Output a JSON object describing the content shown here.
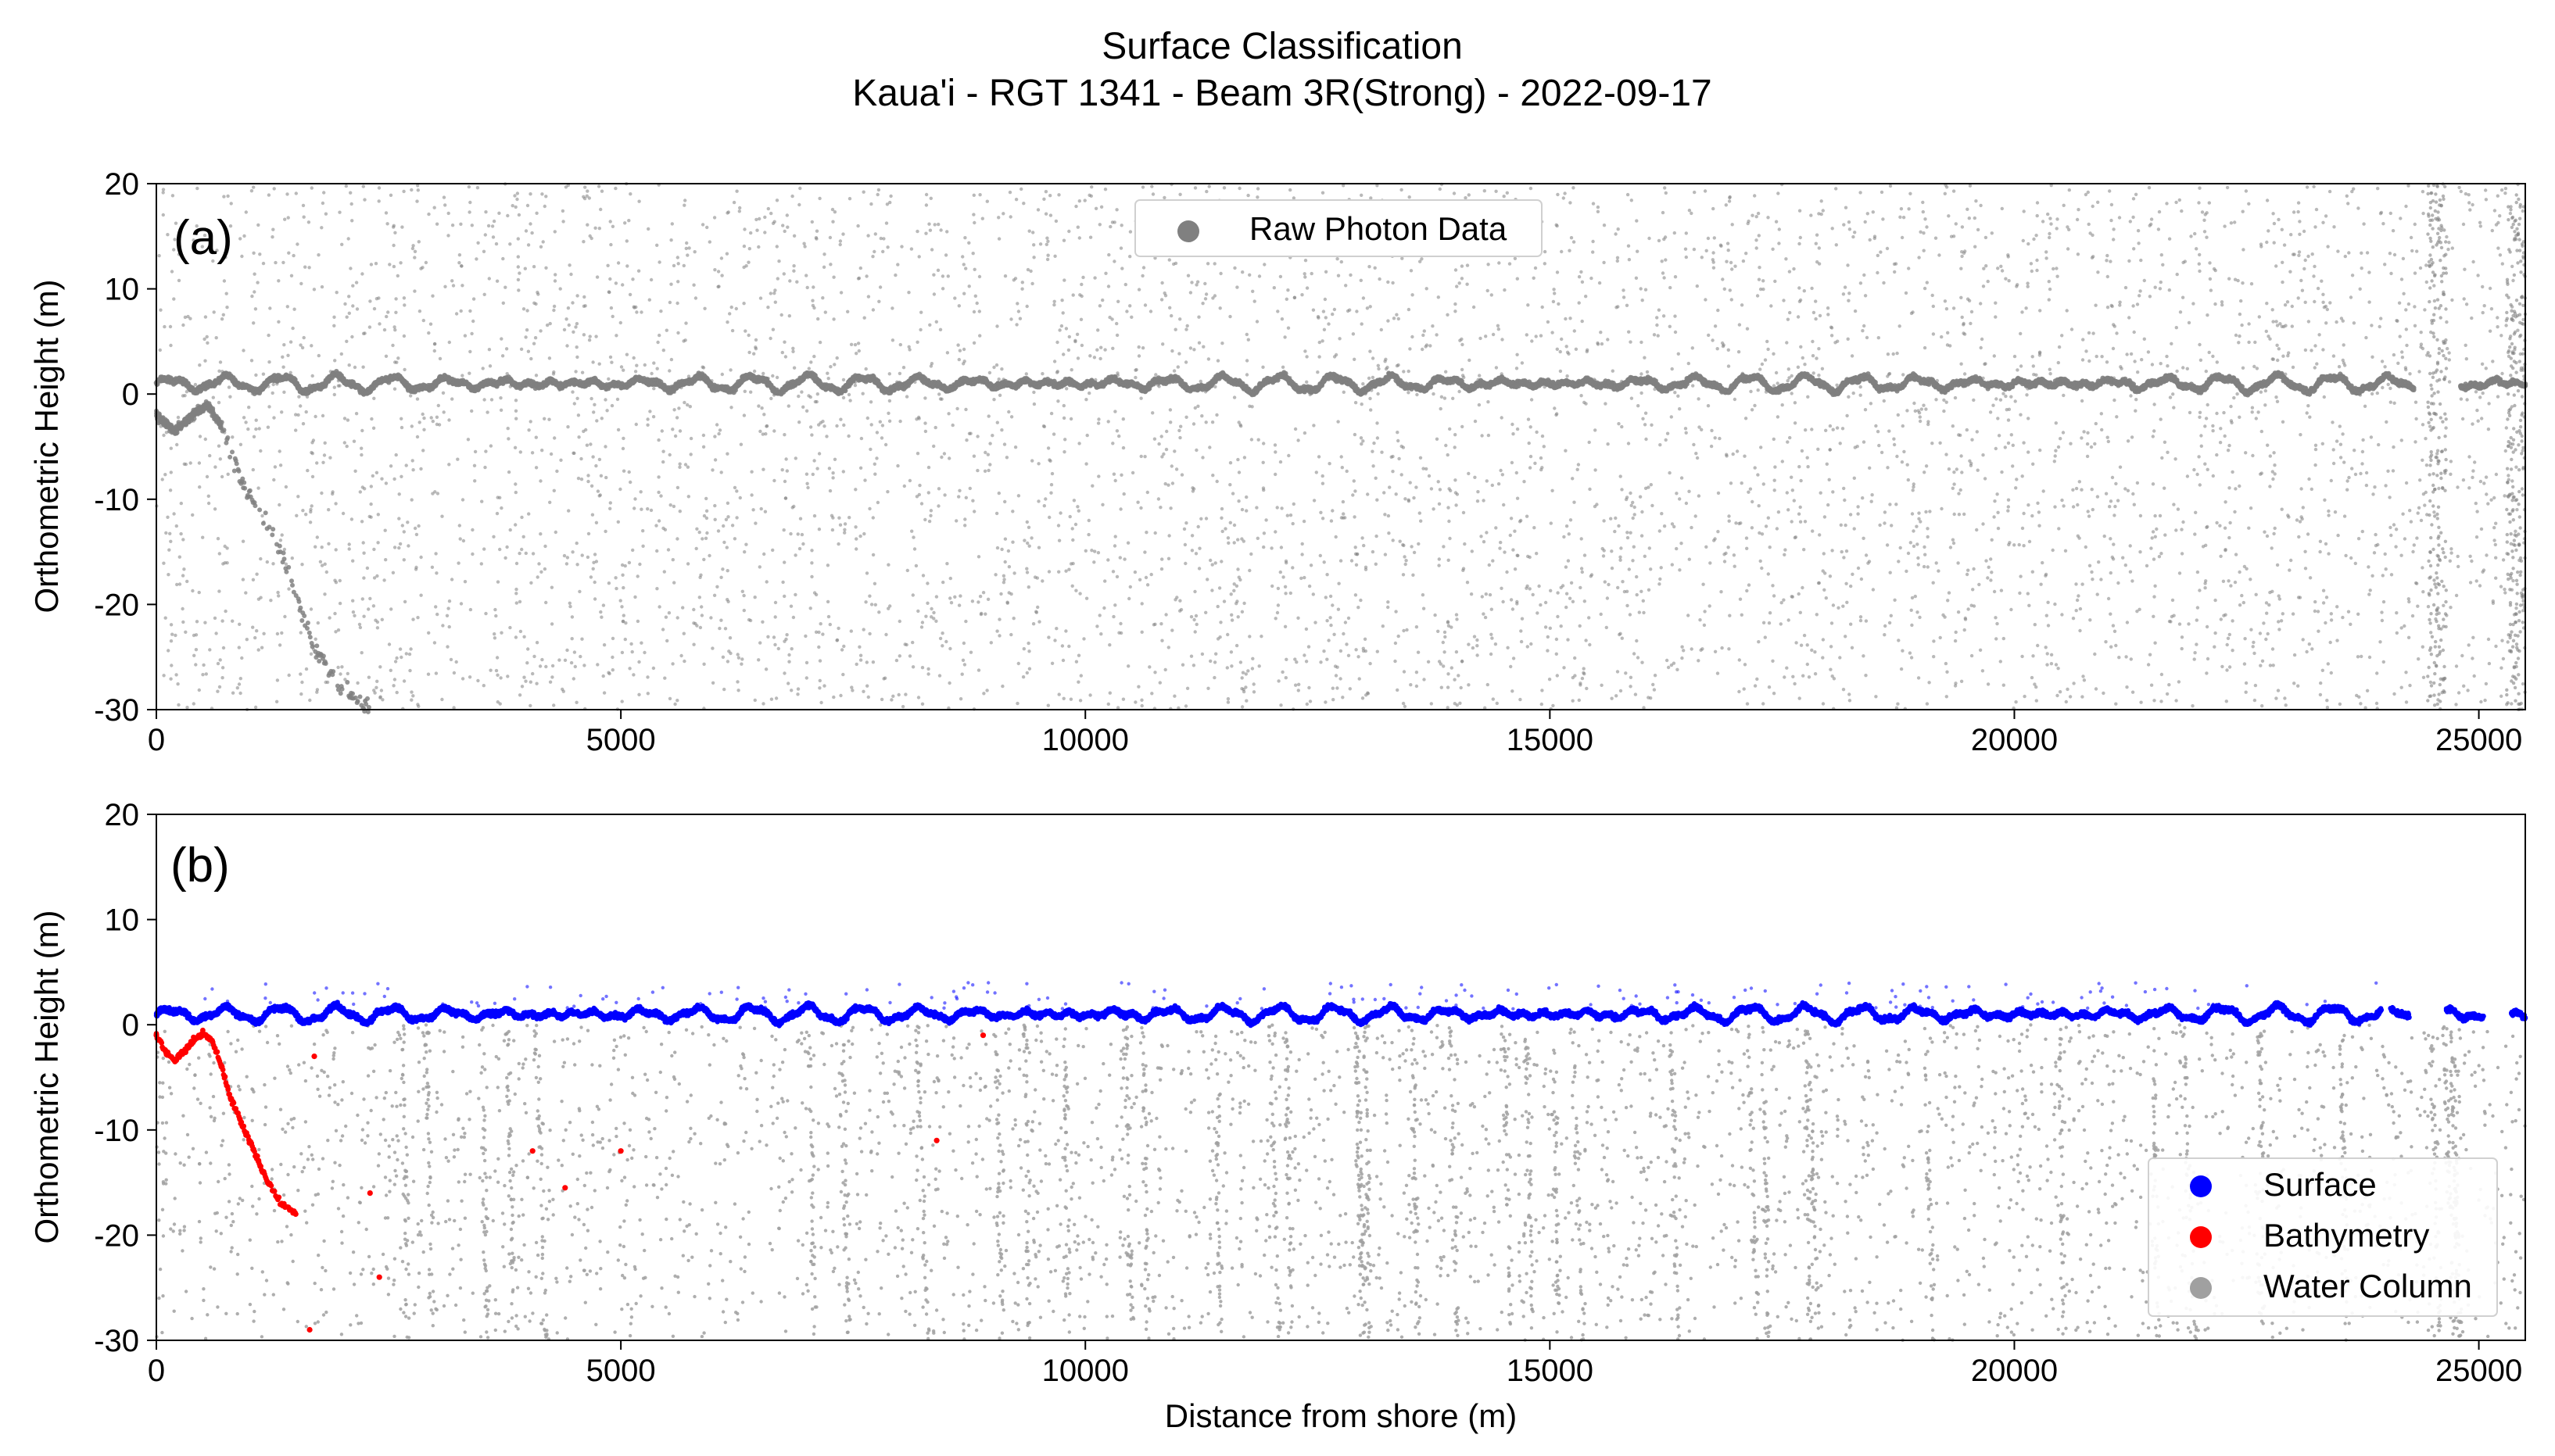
{
  "title_line1": "Surface Classification",
  "title_line2": "Kaua'i - RGT 1341 - Beam 3R(Strong) - 2022-09-17",
  "chart_data": [
    {
      "type": "scatter",
      "panel_label": "(a)",
      "xlabel": "",
      "ylabel": "Orthometric Height (m)",
      "xlim": [
        0,
        25500
      ],
      "ylim": [
        -30,
        20
      ],
      "xticks": [
        0,
        5000,
        10000,
        15000,
        20000,
        25000
      ],
      "yticks": [
        -30,
        -20,
        -10,
        0,
        10,
        20
      ],
      "grid": false,
      "legend_position": "top-center",
      "series": [
        {
          "name": "Raw Photon Data",
          "color": "#808080",
          "description_points": {
            "surface_band": {
              "x_range": [
                0,
                25500
              ],
              "y_center": 1.0,
              "gap_x": [
                24300,
                24800
              ]
            },
            "seafloor": [
              [
                0,
                -2
              ],
              [
                200,
                -3.5
              ],
              [
                400,
                -2
              ],
              [
                550,
                -1
              ],
              [
                700,
                -3
              ],
              [
                900,
                -8
              ],
              [
                1100,
                -11
              ],
              [
                1300,
                -14
              ],
              [
                1500,
                -19
              ],
              [
                1700,
                -24
              ],
              [
                2000,
                -28
              ],
              [
                2300,
                -30
              ]
            ],
            "background_noise_y_range": [
              -30,
              20
            ]
          }
        }
      ]
    },
    {
      "type": "scatter",
      "panel_label": "(b)",
      "xlabel": "Distance from shore (m)",
      "ylabel": "Orthometric Height (m)",
      "xlim": [
        0,
        25500
      ],
      "ylim": [
        -30,
        20
      ],
      "xticks": [
        0,
        5000,
        10000,
        15000,
        20000,
        25000
      ],
      "yticks": [
        -30,
        -20,
        -10,
        0,
        10,
        20
      ],
      "grid": false,
      "legend_position": "bottom-right",
      "series": [
        {
          "name": "Surface",
          "color": "#0000ff",
          "description_points": {
            "x_range": [
              0,
              25500
            ],
            "y_center": 1.0,
            "gaps_x": [
              [
                23950,
                24050
              ],
              [
                24250,
                24650
              ],
              [
                25050,
                25350
              ]
            ]
          }
        },
        {
          "name": "Bathymetry",
          "color": "#ff0000",
          "points": [
            [
              0,
              -1
            ],
            [
              100,
              -2.5
            ],
            [
              200,
              -3.5
            ],
            [
              300,
              -2.5
            ],
            [
              400,
              -1.5
            ],
            [
              500,
              -0.8
            ],
            [
              600,
              -1.5
            ],
            [
              700,
              -4
            ],
            [
              800,
              -7
            ],
            [
              900,
              -9
            ],
            [
              1000,
              -11
            ],
            [
              1100,
              -13
            ],
            [
              1200,
              -15
            ],
            [
              1350,
              -17
            ],
            [
              1500,
              -18
            ],
            [
              1650,
              -29
            ],
            [
              1700,
              -3
            ],
            [
              2300,
              -16
            ],
            [
              2400,
              -24
            ],
            [
              4050,
              -12
            ],
            [
              4400,
              -15.5
            ],
            [
              5000,
              -12
            ],
            [
              8400,
              -11
            ],
            [
              8900,
              -1
            ]
          ]
        },
        {
          "name": "Water Column",
          "color": "#a0a0a0",
          "description_points": {
            "y_range": [
              -30,
              0
            ]
          }
        }
      ]
    }
  ],
  "colors": {
    "raw": "#808080",
    "surface": "#0000ff",
    "bathymetry": "#ff0000",
    "water_column": "#a0a0a0"
  }
}
